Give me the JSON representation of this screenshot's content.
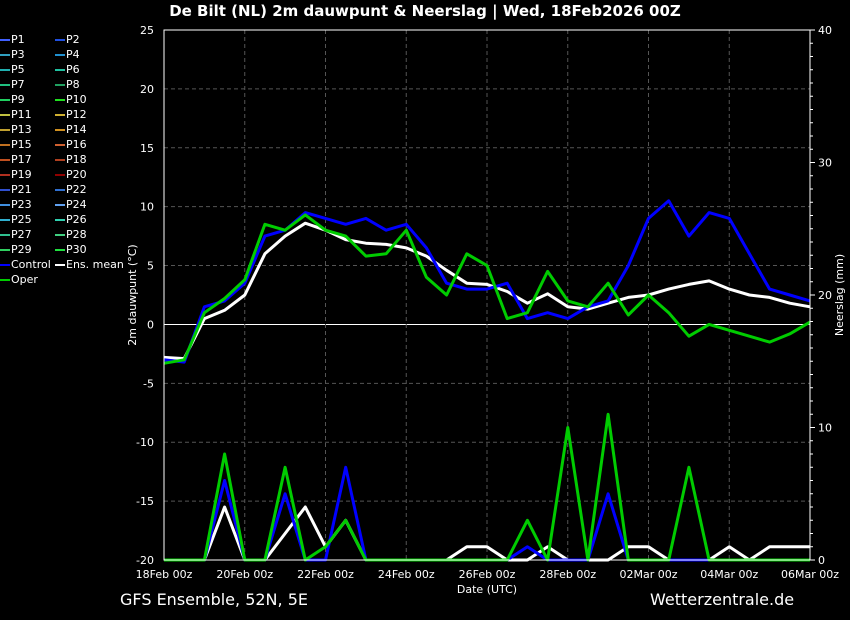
{
  "title": "De Bilt  (NL)  2m dauwpunt & Neerslag | Wed, 18Feb2026 00Z",
  "footer": {
    "model": "GFS Ensemble, 52N, 5E",
    "site": "Wetterzentrale.de"
  },
  "chart_data": {
    "type": "line",
    "title": "De Bilt  (NL)  2m dauwpunt & Neerslag | Wed, 18Feb2026 00Z",
    "xlabel": "Date (UTC)",
    "ylabel": "2m dauwpunt (°C)",
    "y2label": "Neerslag (mm)",
    "x_ticks": [
      "18Feb 00z",
      "20Feb 00z",
      "22Feb 00z",
      "24Feb 00z",
      "26Feb 00z",
      "28Feb 00z",
      "02Mar 00z",
      "04Mar 00z",
      "06Mar 00z"
    ],
    "x_range_hours": [
      0,
      384
    ],
    "ylim": [
      -20,
      25
    ],
    "yticks": [
      25,
      20,
      15,
      10,
      5,
      0,
      -5,
      -10,
      -15,
      -20
    ],
    "y2lim": [
      0,
      40
    ],
    "y2ticks": [
      40,
      30,
      20,
      10,
      0
    ],
    "grid": true,
    "legend_position": "left",
    "legend": [
      "P1",
      "P2",
      "P3",
      "P4",
      "P5",
      "P6",
      "P7",
      "P8",
      "P9",
      "P10",
      "P11",
      "P12",
      "P13",
      "P14",
      "P15",
      "P16",
      "P17",
      "P18",
      "P19",
      "P20",
      "P21",
      "P22",
      "P23",
      "P24",
      "P25",
      "P26",
      "P27",
      "P28",
      "P29",
      "P30",
      "Control",
      "Ens. mean",
      "Oper"
    ],
    "legend_colors": [
      "#4060ff",
      "#2050e0",
      "#30a0c0",
      "#2090d0",
      "#20b0b0",
      "#20c0a0",
      "#20c080",
      "#20a060",
      "#20d060",
      "#20e020",
      "#c0c040",
      "#d0b030",
      "#c0a030",
      "#d09020",
      "#c07020",
      "#d06030",
      "#c05020",
      "#b04020",
      "#b03020",
      "#900000",
      "#3050d0",
      "#3070d0",
      "#4090e0",
      "#60a0f0",
      "#30b0d0",
      "#30d0b0",
      "#30c090",
      "#40d080",
      "#30d060",
      "#20e040",
      "#0000ff",
      "#ffffff",
      "#00cc00"
    ],
    "x_hours": [
      0,
      12,
      24,
      36,
      48,
      60,
      72,
      84,
      96,
      108,
      120,
      132,
      144,
      156,
      168,
      180,
      192,
      204,
      216,
      228,
      240,
      252,
      264,
      276,
      288,
      300,
      312,
      324,
      336,
      348,
      360,
      372,
      384
    ],
    "series": [
      {
        "name": "Ens. mean",
        "axis": "dewpoint",
        "values": [
          -2.8,
          -2.9,
          0.5,
          1.2,
          2.5,
          6.0,
          7.5,
          8.6,
          8.0,
          7.2,
          6.9,
          6.8,
          6.5,
          5.8,
          4.6,
          3.5,
          3.4,
          2.8,
          1.8,
          2.6,
          1.5,
          1.3,
          1.8,
          2.3,
          2.5,
          3.0,
          3.4,
          3.7,
          3.0,
          2.5,
          2.3,
          1.8,
          1.5
        ]
      },
      {
        "name": "Control",
        "axis": "dewpoint",
        "values": [
          -3.0,
          -3.2,
          1.5,
          2.0,
          3.5,
          7.5,
          8.0,
          9.5,
          9.0,
          8.5,
          9.0,
          8.0,
          8.5,
          6.5,
          3.5,
          3.0,
          3.0,
          3.5,
          0.5,
          1.0,
          0.5,
          1.5,
          2.0,
          5.0,
          9.0,
          10.5,
          7.5,
          9.5,
          9.0,
          6.0,
          3.0,
          2.5,
          2.0
        ]
      },
      {
        "name": "Oper",
        "axis": "dewpoint",
        "values": [
          -3.3,
          -3.0,
          1.0,
          2.2,
          3.8,
          8.5,
          8.0,
          9.3,
          8.0,
          7.5,
          5.8,
          6.0,
          8.0,
          4.0,
          2.5,
          6.0,
          5.0,
          0.5,
          1.0,
          4.5,
          2.0,
          1.5,
          3.5,
          0.8,
          2.5,
          1.0,
          -1.0,
          0.0,
          -0.5,
          -1.0,
          -1.5,
          -0.8,
          0.2
        ]
      },
      {
        "name": "Ens. mean",
        "axis": "precip",
        "values": [
          0,
          0,
          0,
          4,
          0,
          0,
          2,
          4,
          1,
          3,
          0,
          0,
          0,
          0,
          0,
          1,
          1,
          0,
          0,
          1,
          0,
          0,
          0,
          1,
          1,
          0,
          0,
          0,
          1,
          0,
          1,
          1,
          1
        ]
      },
      {
        "name": "Control",
        "axis": "precip",
        "values": [
          0,
          0,
          0,
          6,
          0,
          0,
          5,
          0,
          0,
          7,
          0,
          0,
          0,
          0,
          0,
          0,
          0,
          0,
          1,
          0,
          0,
          0,
          5,
          0,
          0,
          0,
          0,
          0,
          0,
          0,
          0,
          0,
          0
        ]
      },
      {
        "name": "Oper",
        "axis": "precip",
        "values": [
          0,
          0,
          0,
          8,
          0,
          0,
          7,
          0,
          1,
          3,
          0,
          0,
          0,
          0,
          0,
          0,
          0,
          0,
          3,
          0,
          10,
          0,
          11,
          0,
          0,
          0,
          7,
          0,
          0,
          0,
          0,
          0,
          0
        ]
      }
    ]
  }
}
